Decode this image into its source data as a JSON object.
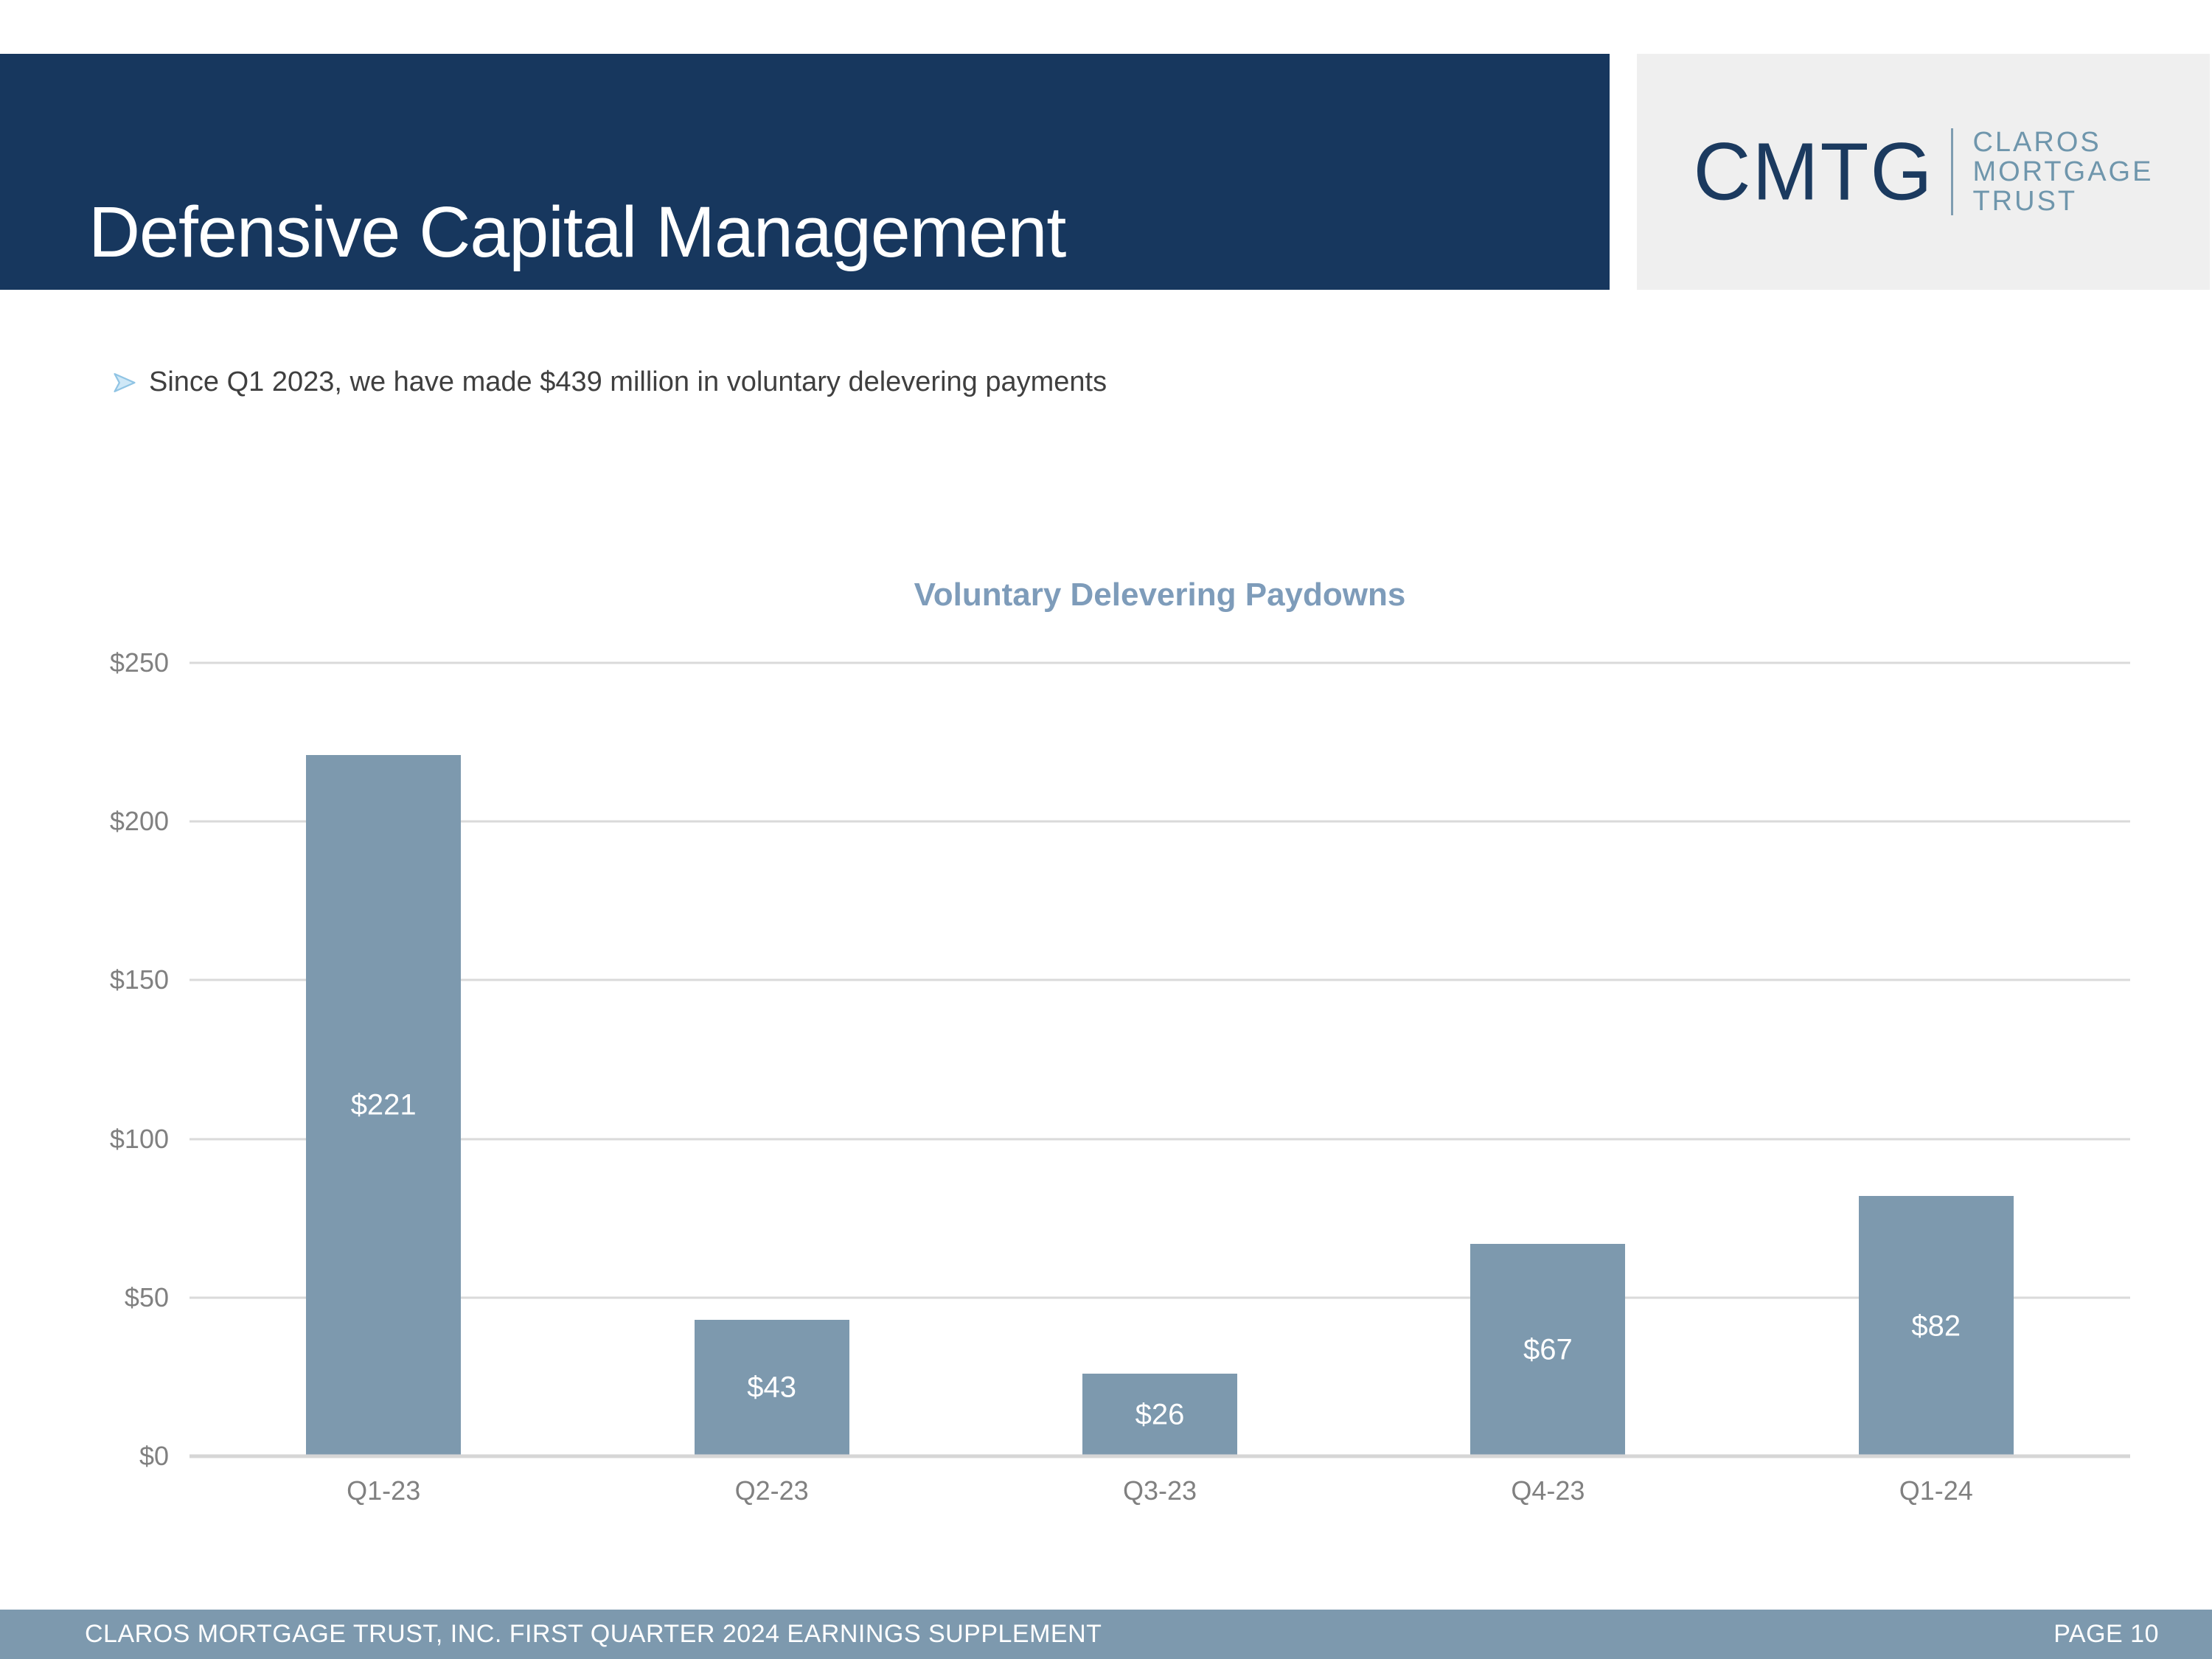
{
  "header": {
    "title": "Defensive Capital Management",
    "logo": {
      "wordmark": "CMTG",
      "brand_lines": [
        "CLAROS",
        "MORTGAGE",
        "TRUST"
      ]
    }
  },
  "bullet": {
    "text": "Since Q1 2023, we have made $439 million in voluntary delevering payments"
  },
  "chart_data": {
    "type": "bar",
    "title": "Voluntary Delevering Paydowns",
    "categories": [
      "Q1-23",
      "Q2-23",
      "Q3-23",
      "Q4-23",
      "Q1-24"
    ],
    "values": [
      221,
      43,
      26,
      67,
      82
    ],
    "value_labels": [
      "$221",
      "$43",
      "$26",
      "$67",
      "$82"
    ],
    "y_ticks": [
      "$250",
      "$200",
      "$150",
      "$100",
      "$50",
      "$0"
    ],
    "ylim": [
      0,
      250
    ],
    "grid": true,
    "legend": "none",
    "bar_color": "#7d99ae",
    "value_label_color": "#ffffff"
  },
  "footer": {
    "left": "CLAROS MORTGAGE TRUST, INC. FIRST QUARTER 2024 EARNINGS SUPPLEMENT",
    "right": "PAGE 10"
  },
  "colors": {
    "header_navy": "#17375e",
    "logo_background": "#efefef",
    "logo_navy": "#1b3a5f",
    "logo_bluegray": "#6f96ac",
    "accent_bluegray": "#7d99ae",
    "chart_title_blue": "#7e9cba",
    "axis_text_gray": "#808080",
    "gridline_gray": "#dadada",
    "bullet_arrow_blue": "#cfe8f7",
    "body_text_gray": "#3f3f3f"
  }
}
